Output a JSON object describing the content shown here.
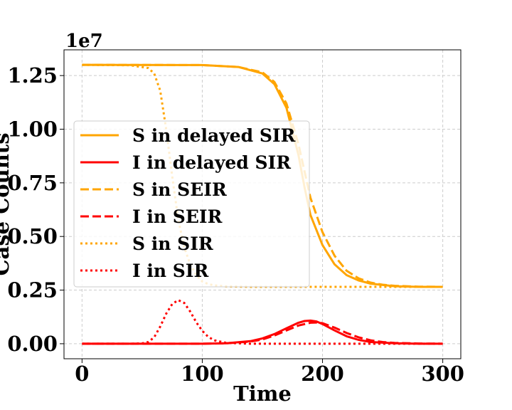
{
  "chart_data": {
    "type": "line",
    "xlabel": "Time",
    "ylabel": "Case Counts",
    "y_offset_label": "1e7",
    "xlim": [
      -15,
      315
    ],
    "ylim": [
      -0.07,
      1.37
    ],
    "y_scale_multiplier": 10000000,
    "xticks": [
      0,
      100,
      200,
      300
    ],
    "xtick_labels": [
      "0",
      "100",
      "200",
      "300"
    ],
    "yticks": [
      0.0,
      0.25,
      0.5,
      0.75,
      1.0,
      1.25
    ],
    "ytick_labels": [
      "0.00",
      "0.25",
      "0.50",
      "0.75",
      "1.00",
      "1.25"
    ],
    "grid": true,
    "legend_position": "center-left",
    "series": [
      {
        "name": "S in delayed SIR",
        "color": "#FFA500",
        "style": "solid",
        "x": [
          0,
          100,
          130,
          150,
          160,
          170,
          180,
          185,
          190,
          200,
          210,
          220,
          230,
          240,
          260,
          280,
          300
        ],
        "y": [
          1.3,
          1.299,
          1.29,
          1.26,
          1.21,
          1.1,
          0.88,
          0.73,
          0.6,
          0.46,
          0.37,
          0.32,
          0.295,
          0.28,
          0.268,
          0.265,
          0.265
        ]
      },
      {
        "name": "I in delayed SIR",
        "color": "#FF0000",
        "style": "solid",
        "x": [
          0,
          100,
          120,
          140,
          150,
          160,
          170,
          180,
          185,
          190,
          195,
          200,
          210,
          220,
          230,
          240,
          260,
          280,
          300
        ],
        "y": [
          0.0,
          0.0,
          0.002,
          0.012,
          0.025,
          0.045,
          0.072,
          0.098,
          0.106,
          0.108,
          0.104,
          0.092,
          0.062,
          0.035,
          0.018,
          0.008,
          0.002,
          0.0,
          0.0
        ]
      },
      {
        "name": "S in SEIR",
        "color": "#FFA500",
        "style": "dashed",
        "x": [
          0,
          100,
          130,
          150,
          160,
          170,
          180,
          190,
          200,
          210,
          220,
          230,
          240,
          250,
          260,
          280,
          300
        ],
        "y": [
          1.3,
          1.299,
          1.29,
          1.265,
          1.22,
          1.12,
          0.93,
          0.68,
          0.52,
          0.41,
          0.34,
          0.305,
          0.285,
          0.275,
          0.27,
          0.266,
          0.265
        ]
      },
      {
        "name": "I in SEIR",
        "color": "#FF0000",
        "style": "dashed",
        "x": [
          0,
          100,
          120,
          140,
          150,
          160,
          170,
          180,
          190,
          195,
          200,
          210,
          220,
          230,
          240,
          250,
          260,
          280,
          300
        ],
        "y": [
          0.0,
          0.0,
          0.002,
          0.01,
          0.02,
          0.038,
          0.062,
          0.085,
          0.098,
          0.099,
          0.096,
          0.075,
          0.05,
          0.03,
          0.016,
          0.008,
          0.004,
          0.001,
          0.0
        ]
      },
      {
        "name": "S in SIR",
        "color": "#FFA500",
        "style": "dotted",
        "x": [
          0,
          40,
          55,
          60,
          65,
          70,
          75,
          80,
          85,
          90,
          95,
          100,
          105,
          110,
          120,
          140,
          160,
          200,
          300
        ],
        "y": [
          1.3,
          1.298,
          1.285,
          1.26,
          1.18,
          1.0,
          0.78,
          0.58,
          0.45,
          0.37,
          0.32,
          0.29,
          0.278,
          0.272,
          0.267,
          0.265,
          0.265,
          0.265,
          0.265
        ]
      },
      {
        "name": "I in SIR",
        "color": "#FF0000",
        "style": "dotted",
        "x": [
          0,
          40,
          50,
          55,
          60,
          65,
          70,
          75,
          80,
          85,
          90,
          95,
          100,
          105,
          110,
          120,
          140,
          300
        ],
        "y": [
          0.0,
          0.0,
          0.002,
          0.008,
          0.03,
          0.08,
          0.14,
          0.185,
          0.203,
          0.19,
          0.15,
          0.1,
          0.06,
          0.032,
          0.016,
          0.004,
          0.0,
          0.0
        ]
      }
    ]
  }
}
